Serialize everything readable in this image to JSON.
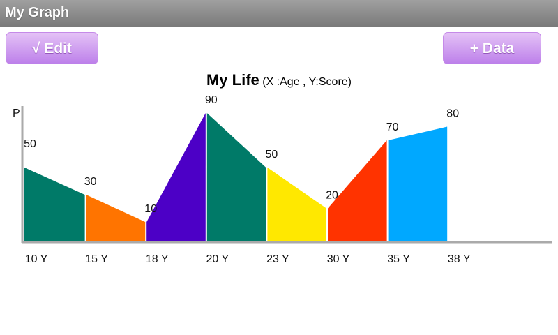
{
  "app": {
    "title": "My Graph"
  },
  "toolbar": {
    "edit_label": "√ Edit",
    "add_data_label": "+ Data"
  },
  "chart_data": {
    "type": "area",
    "title": "My Life",
    "subtitle": "(X :Age , Y:Score)",
    "ylabel": "P",
    "categories": [
      "10 Y",
      "15 Y",
      "18 Y",
      "20 Y",
      "23 Y",
      "30 Y",
      "35 Y",
      "38 Y"
    ],
    "values": [
      50,
      30,
      10,
      90,
      50,
      20,
      70,
      80
    ],
    "value_labels": [
      "50",
      "30",
      "10",
      "90",
      "50",
      "20",
      "70",
      "80"
    ],
    "segment_colors": [
      "#007a68",
      "#ff7400",
      "#4c00c6",
      "#007a68",
      "#ffe800",
      "#ff3300",
      "#00a8ff"
    ],
    "grid": false
  }
}
